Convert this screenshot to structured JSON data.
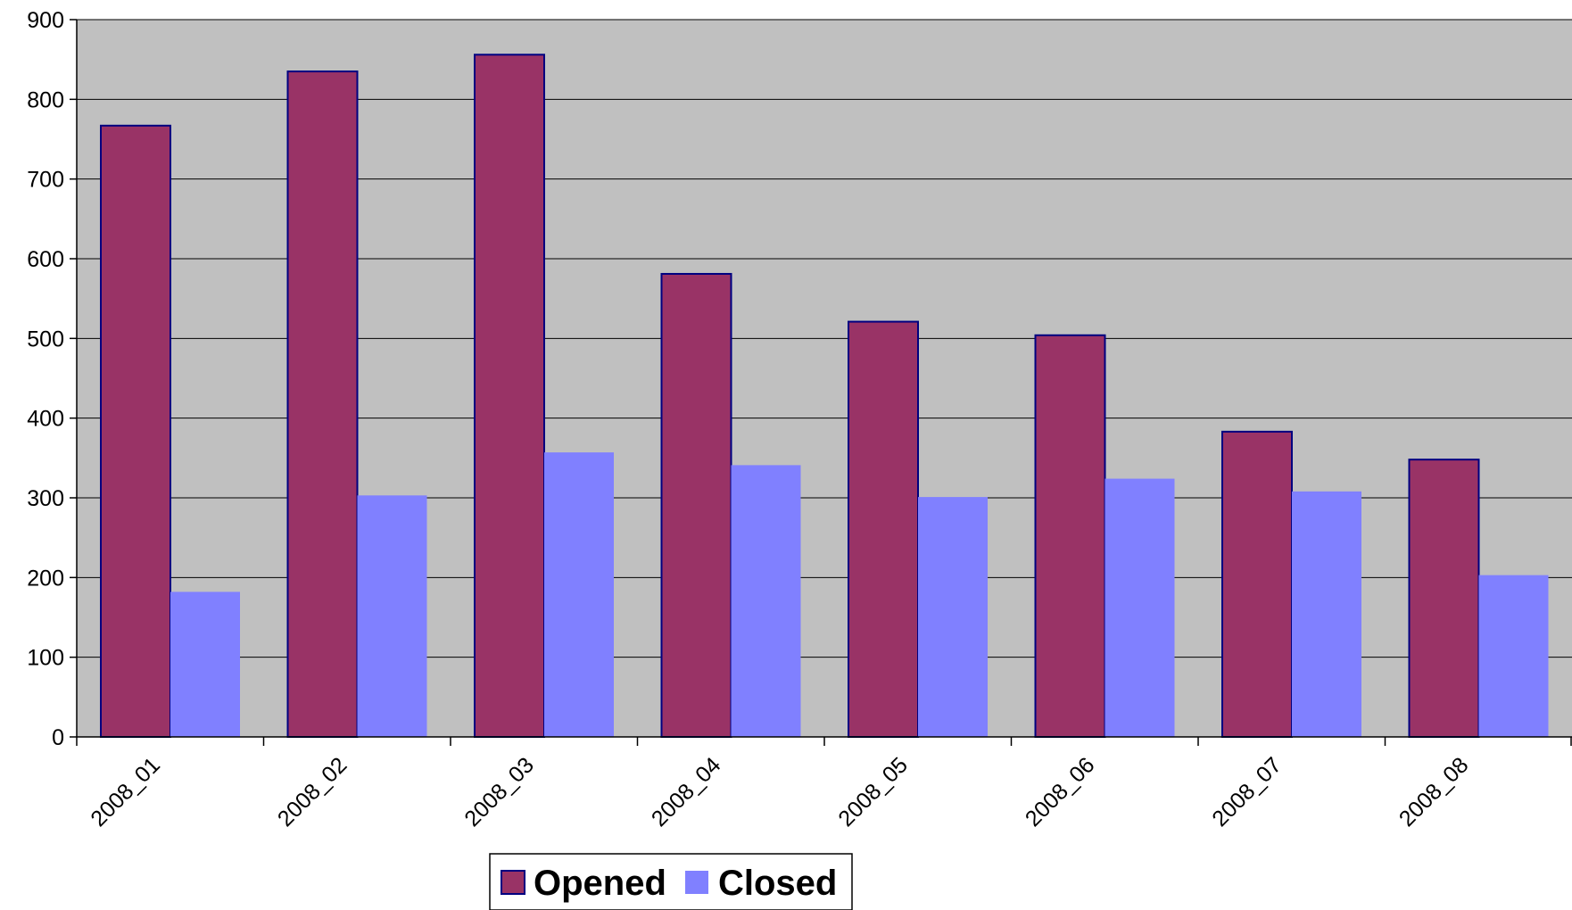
{
  "chart_data": {
    "type": "bar",
    "title": "",
    "xlabel": "",
    "ylabel": "",
    "categories": [
      "2008_01",
      "2008_02",
      "2008_03",
      "2008_04",
      "2008_05",
      "2008_06",
      "2008_07",
      "2008_08"
    ],
    "series": [
      {
        "name": "Opened",
        "values": [
          767,
          835,
          856,
          581,
          521,
          504,
          383,
          348
        ],
        "color": "#993366"
      },
      {
        "name": "Closed",
        "values": [
          182,
          303,
          357,
          341,
          301,
          324,
          308,
          203
        ],
        "color": "#8080ff"
      }
    ],
    "ylim": [
      0,
      900
    ],
    "yticks": [
      0,
      100,
      200,
      300,
      400,
      500,
      600,
      700,
      800,
      900
    ],
    "grid": true,
    "plot_background": "#c0c0c0",
    "gridline_color": "#000000",
    "bar_outline_color": "#000080",
    "legend_position": "bottom"
  }
}
